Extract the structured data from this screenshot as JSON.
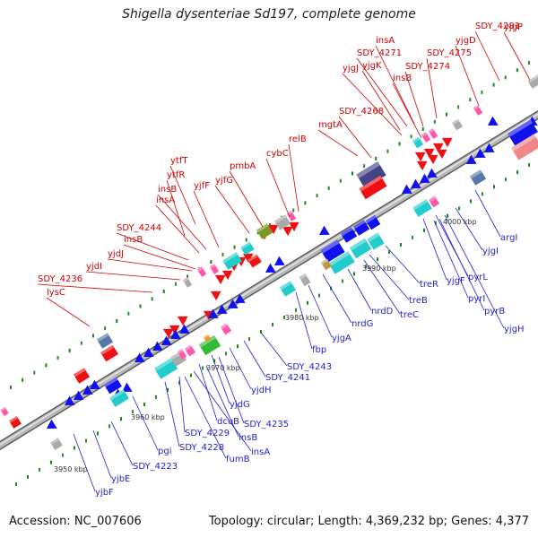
{
  "title": "Shigella dysenteriae Sd197, complete genome",
  "accession_text": "Accession: NC_007606",
  "summary_text": "Topology: circular; Length: 4,369,232 bp; Genes: 4,377",
  "colors": {
    "backbone": "#9a9a9a",
    "label_top": "#cc0000",
    "label_bottom": "#1f1fcc",
    "kbp_label": "#333333",
    "forward_cds": "#ee1111",
    "reverse_cds": "#1111ee",
    "cyan_feature": "#22cccc",
    "pink_feature": "#ff55aa",
    "grey_feature": "#aaaaaa",
    "olive_feature": "#779922",
    "navy_feature": "#444488",
    "salmon_feature": "#ee8888",
    "green_feature": "#33bb33",
    "tick": "#118811"
  },
  "kbp_labels": [
    "4000 kbp",
    "3990 kbp",
    "3980 kbp",
    "3970 kbp",
    "3960 kbp",
    "3950 kbp"
  ],
  "top_genes": [
    "yjgP",
    "SDY_4281",
    "yjgD",
    "insA",
    "SDY_4271",
    "SDY_4275",
    "yjgK",
    "SDY_4274",
    "yjgJ",
    "insB",
    "SDY_4268",
    "mgtA",
    "relB",
    "cybC",
    "ytfT",
    "ytfR",
    "yjfF",
    "pmbA",
    "yjfG",
    "insB",
    "insA",
    "SDY_4244",
    "insB",
    "yjdJ",
    "yjdI",
    "SDY_4236",
    "lysC"
  ],
  "bottom_genes": [
    "yjgI",
    "argI",
    "yjgF",
    "pyrL",
    "pyrI",
    "pyrB",
    "yjgH",
    "treR",
    "treB",
    "nrdD",
    "treC",
    "nrdG",
    "yjgA",
    "fbp",
    "SDY_4243",
    "SDY_4241",
    "yjdH",
    "yjdG",
    "SDY_4235",
    "dcuB",
    "insB",
    "insA",
    "SDY_4229",
    "SDY_4228",
    "fumB",
    "pgi",
    "SDY_4223",
    "yjbE",
    "yjbF"
  ]
}
